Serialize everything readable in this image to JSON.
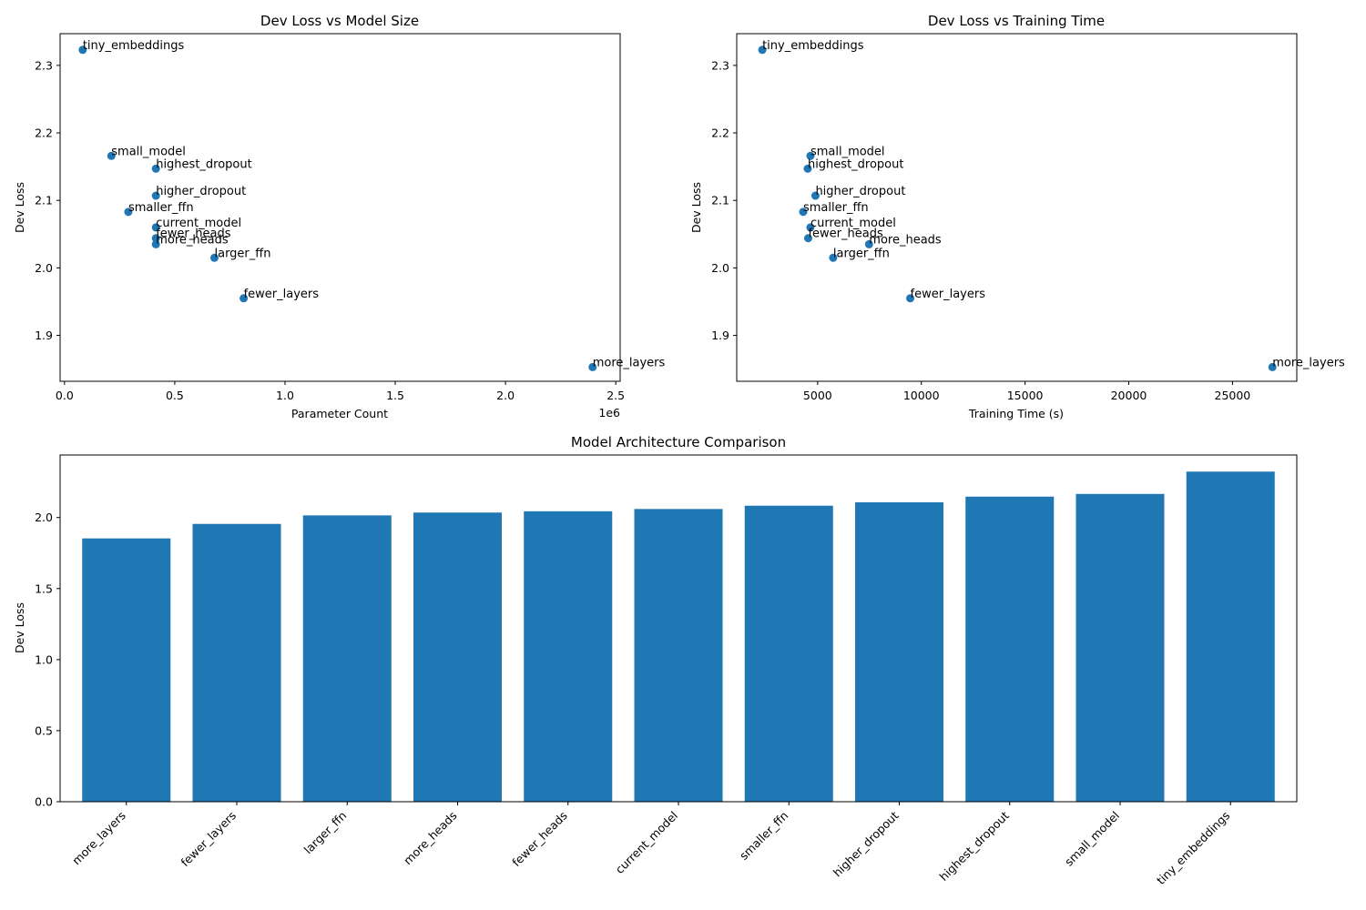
{
  "chart_data": [
    {
      "type": "scatter",
      "title": "Dev Loss vs Model Size",
      "xlabel": "Parameter Count",
      "ylabel": "Dev Loss",
      "x_offset_text": "1e6",
      "xlim": [
        -0.02,
        2.52
      ],
      "ylim": [
        1.832,
        2.347
      ],
      "xticks": [
        "0.0",
        "0.5",
        "1.0",
        "1.5",
        "2.0",
        "2.5"
      ],
      "yticks": [
        "1.9",
        "2.0",
        "2.1",
        "2.2",
        "2.3"
      ],
      "color": "#1f77b4",
      "points": [
        {
          "label": "tiny_embeddings",
          "x": 0.0825,
          "y": 2.323
        },
        {
          "label": "small_model",
          "x": 0.2125,
          "y": 2.166
        },
        {
          "label": "highest_dropout",
          "x": 0.4145,
          "y": 2.147
        },
        {
          "label": "higher_dropout",
          "x": 0.4145,
          "y": 2.107
        },
        {
          "label": "smaller_ffn",
          "x": 0.2895,
          "y": 2.083
        },
        {
          "label": "current_model",
          "x": 0.4145,
          "y": 2.06
        },
        {
          "label": "fewer_heads",
          "x": 0.4145,
          "y": 2.044
        },
        {
          "label": "more_heads",
          "x": 0.4145,
          "y": 2.035
        },
        {
          "label": "larger_ffn",
          "x": 0.68,
          "y": 2.015
        },
        {
          "label": "fewer_layers",
          "x": 0.8125,
          "y": 1.955
        },
        {
          "label": "more_layers",
          "x": 2.395,
          "y": 1.853
        }
      ]
    },
    {
      "type": "scatter",
      "title": "Dev Loss vs Training Time",
      "xlabel": "Training Time (s)",
      "ylabel": "Dev Loss",
      "xlim": [
        1100,
        28100
      ],
      "ylim": [
        1.832,
        2.347
      ],
      "xticks": [
        "5000",
        "10000",
        "15000",
        "20000",
        "25000"
      ],
      "yticks": [
        "1.9",
        "2.0",
        "2.1",
        "2.2",
        "2.3"
      ],
      "color": "#1f77b4",
      "points": [
        {
          "label": "tiny_embeddings",
          "x": 2333,
          "y": 2.323
        },
        {
          "label": "small_model",
          "x": 4654,
          "y": 2.166
        },
        {
          "label": "highest_dropout",
          "x": 4523,
          "y": 2.147
        },
        {
          "label": "higher_dropout",
          "x": 4895,
          "y": 2.107
        },
        {
          "label": "smaller_ffn",
          "x": 4304,
          "y": 2.083
        },
        {
          "label": "current_model",
          "x": 4654,
          "y": 2.06
        },
        {
          "label": "fewer_heads",
          "x": 4545,
          "y": 2.044
        },
        {
          "label": "more_heads",
          "x": 7479,
          "y": 2.035
        },
        {
          "label": "larger_ffn",
          "x": 5749,
          "y": 2.015
        },
        {
          "label": "fewer_layers",
          "x": 9465,
          "y": 1.955
        },
        {
          "label": "more_layers",
          "x": 26926,
          "y": 1.853
        }
      ]
    },
    {
      "type": "bar",
      "title": "Model Architecture Comparison",
      "xlabel": "",
      "ylabel": "Dev Loss",
      "ylim": [
        0,
        2.44
      ],
      "yticks": [
        "0.0",
        "0.5",
        "1.0",
        "1.5",
        "2.0"
      ],
      "color": "#1f77b4",
      "categories": [
        "more_layers",
        "fewer_layers",
        "larger_ffn",
        "more_heads",
        "fewer_heads",
        "current_model",
        "smaller_ffn",
        "higher_dropout",
        "highest_dropout",
        "small_model",
        "tiny_embeddings"
      ],
      "values": [
        1.853,
        1.955,
        2.015,
        2.035,
        2.044,
        2.06,
        2.083,
        2.107,
        2.147,
        2.166,
        2.323
      ]
    }
  ]
}
